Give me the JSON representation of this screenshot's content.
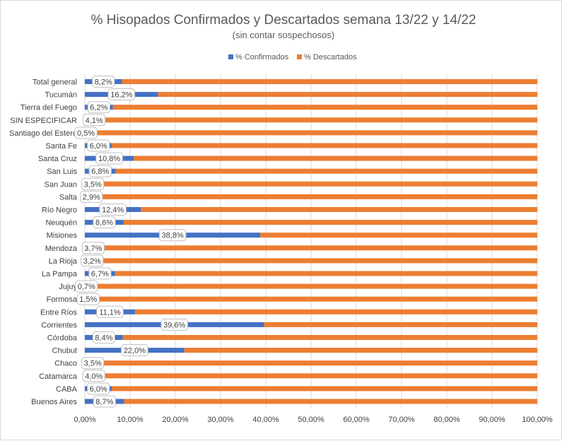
{
  "chart_data": {
    "type": "bar",
    "orientation": "horizontal",
    "stacked": "percent",
    "title": "% Hisopados Confirmados y Descartados semana 13/22 y 14/22",
    "subtitle": "(sin contar sospechosos)",
    "legend_position": "top",
    "grid": "vertical",
    "xlim": [
      0,
      100
    ],
    "x_ticks": [
      0,
      10,
      20,
      30,
      40,
      50,
      60,
      70,
      80,
      90,
      100
    ],
    "x_tick_labels": [
      "0,00%",
      "10,00%",
      "20,00%",
      "30,00%",
      "40,00%",
      "50,00%",
      "60,00%",
      "70,00%",
      "80,00%",
      "90,00%",
      "100,00%"
    ],
    "categories": [
      "Total general",
      "Tucumán",
      "Tierra del Fuego",
      "SIN ESPECIFICAR",
      "Santiago del Estero",
      "Santa Fe",
      "Santa Cruz",
      "San Luis",
      "San Juan",
      "Salta",
      "Río Negro",
      "Neuquén",
      "Misiones",
      "Mendoza",
      "La Rioja",
      "La Pampa",
      "Jujuy",
      "Formosa",
      "Entre Ríos",
      "Corrientes",
      "Córdoba",
      "Chubut",
      "Chaco",
      "Catamarca",
      "CABA",
      "Buenos Aires"
    ],
    "series": [
      {
        "name": "% Confirmados",
        "color": "#4472c4",
        "values": [
          8.2,
          16.2,
          6.2,
          4.1,
          0.5,
          6.0,
          10.8,
          6.8,
          3.5,
          2.9,
          12.4,
          8.6,
          38.8,
          3.7,
          3.2,
          6.7,
          0.7,
          1.5,
          11.1,
          39.6,
          8.4,
          22.0,
          3.5,
          4.0,
          6.0,
          8.7
        ],
        "labels": [
          "8,2%",
          "16,2%",
          "6,2%",
          "4,1%",
          "0,5%",
          "6,0%",
          "10,8%",
          "6,8%",
          "3,5%",
          "2,9%",
          "12,4%",
          "8,6%",
          "38,8%",
          "3,7%",
          "3,2%",
          "6,7%",
          "0,7%",
          "1,5%",
          "11,1%",
          "39,6%",
          "8,4%",
          "22,0%",
          "3,5%",
          "4,0%",
          "6,0%",
          "8,7%"
        ]
      },
      {
        "name": "% Descartados",
        "color": "#ed7d31",
        "values": [
          91.8,
          83.8,
          93.8,
          95.9,
          99.5,
          94.0,
          89.2,
          93.2,
          96.5,
          97.1,
          87.6,
          91.4,
          61.2,
          96.3,
          96.8,
          93.3,
          99.3,
          98.5,
          88.9,
          60.4,
          91.6,
          78.0,
          96.5,
          96.0,
          94.0,
          91.3
        ]
      }
    ]
  }
}
